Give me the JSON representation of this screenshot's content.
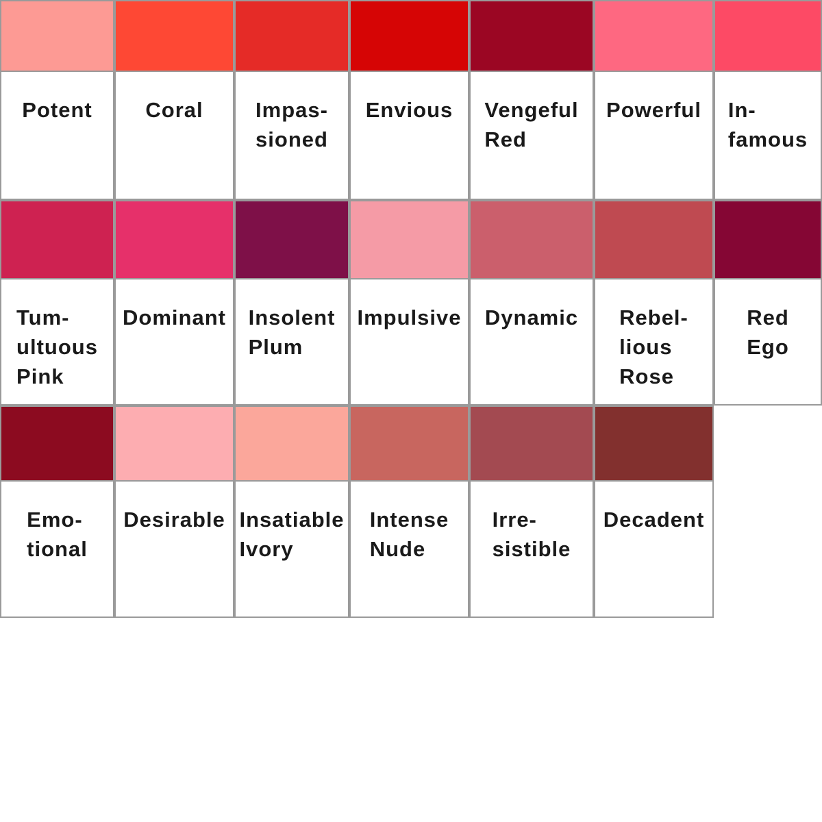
{
  "rows": [
    {
      "cells": [
        {
          "color": "#fd9a94",
          "lines": [
            "Potent"
          ]
        },
        {
          "color": "#fe4834",
          "lines": [
            "Coral"
          ]
        },
        {
          "color": "#e52b27",
          "lines": [
            "Impas-",
            "sioned"
          ]
        },
        {
          "color": "#d60505",
          "lines": [
            "Envious"
          ]
        },
        {
          "color": "#9b0623",
          "lines": [
            "Vengeful",
            "Red"
          ]
        },
        {
          "color": "#fe6881",
          "lines": [
            "Powerful"
          ]
        },
        {
          "color": "#fd4a65",
          "lines": [
            "In-",
            "famous"
          ]
        }
      ]
    },
    {
      "cells": [
        {
          "color": "#ce2251",
          "lines": [
            "Tum-",
            "ultuous",
            "Pink"
          ]
        },
        {
          "color": "#e6306a",
          "lines": [
            "Dominant"
          ]
        },
        {
          "color": "#7e1048",
          "lines": [
            "Insolent",
            "Plum"
          ]
        },
        {
          "color": "#f59ba6",
          "lines": [
            "Impulsive"
          ]
        },
        {
          "color": "#cb5f6c",
          "lines": [
            "Dynamic"
          ]
        },
        {
          "color": "#bf4a51",
          "lines": [
            "Rebel-",
            "lious",
            "Rose"
          ]
        },
        {
          "color": "#850634",
          "lines": [
            "Red",
            "Ego"
          ]
        }
      ]
    },
    {
      "cells": [
        {
          "color": "#8c0b20",
          "lines": [
            "Emo-",
            "tional"
          ]
        },
        {
          "color": "#fdadb1",
          "lines": [
            "Desirable"
          ]
        },
        {
          "color": "#fba79b",
          "lines": [
            "Insatiable",
            "Ivory"
          ]
        },
        {
          "color": "#c8665f",
          "lines": [
            "Intense",
            "Nude"
          ]
        },
        {
          "color": "#a34a51",
          "lines": [
            "Irre-",
            "sistible"
          ]
        },
        {
          "color": "#82302e",
          "lines": [
            "Decadent"
          ]
        }
      ]
    }
  ]
}
